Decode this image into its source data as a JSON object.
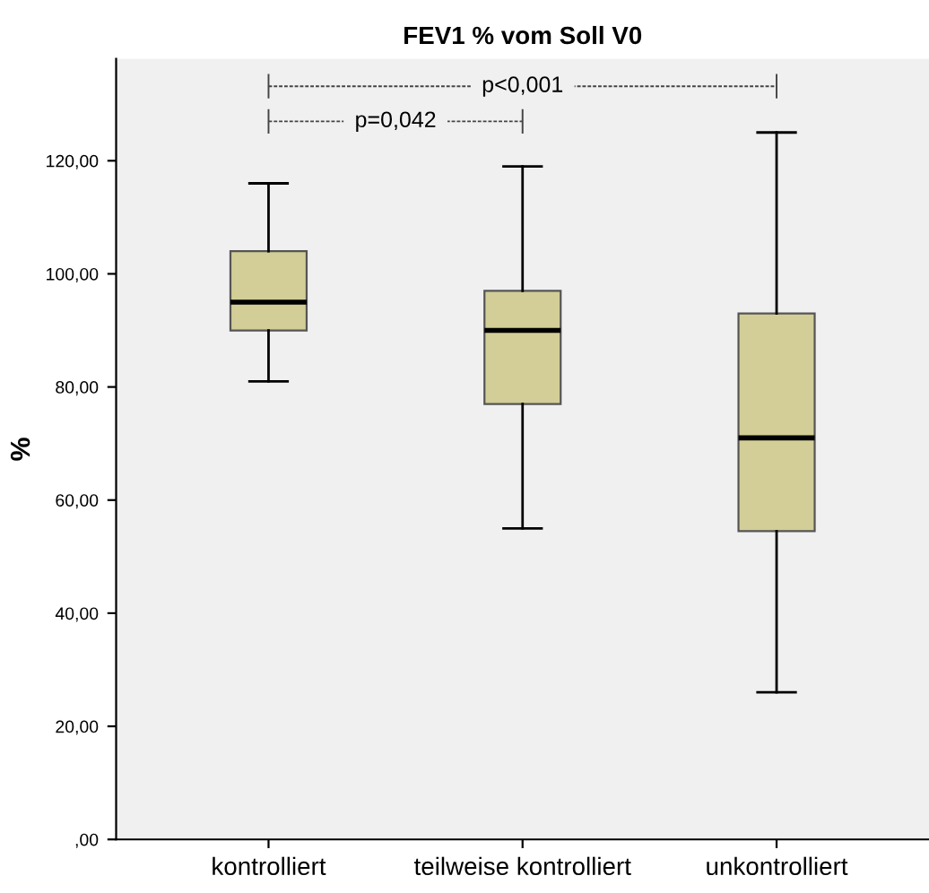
{
  "chart_data": {
    "type": "box",
    "title": "FEV1 % vom Soll V0",
    "ylabel": "%",
    "categories": [
      "kontrolliert",
      "teilweise kontrolliert",
      "unkontrolliert"
    ],
    "boxes": [
      {
        "low": 81,
        "q1": 90,
        "median": 95,
        "q3": 104,
        "high": 116
      },
      {
        "low": 55,
        "q1": 77,
        "median": 90,
        "q3": 97,
        "high": 119
      },
      {
        "low": 26,
        "q1": 54.5,
        "median": 71,
        "q3": 93,
        "high": 125
      }
    ],
    "color": "#d3ce97",
    "ylim": [
      0,
      138
    ],
    "yticks": [
      {
        "value": 0,
        "label": ",00"
      },
      {
        "value": 20,
        "label": "20,00"
      },
      {
        "value": 40,
        "label": "40,00"
      },
      {
        "value": 60,
        "label": "60,00"
      },
      {
        "value": 80,
        "label": "80,00"
      },
      {
        "value": 100,
        "label": "100,00"
      },
      {
        "value": 120,
        "label": "120,00"
      }
    ],
    "grid": false,
    "annotations": [
      "p<0,001",
      "p=0,042"
    ]
  }
}
